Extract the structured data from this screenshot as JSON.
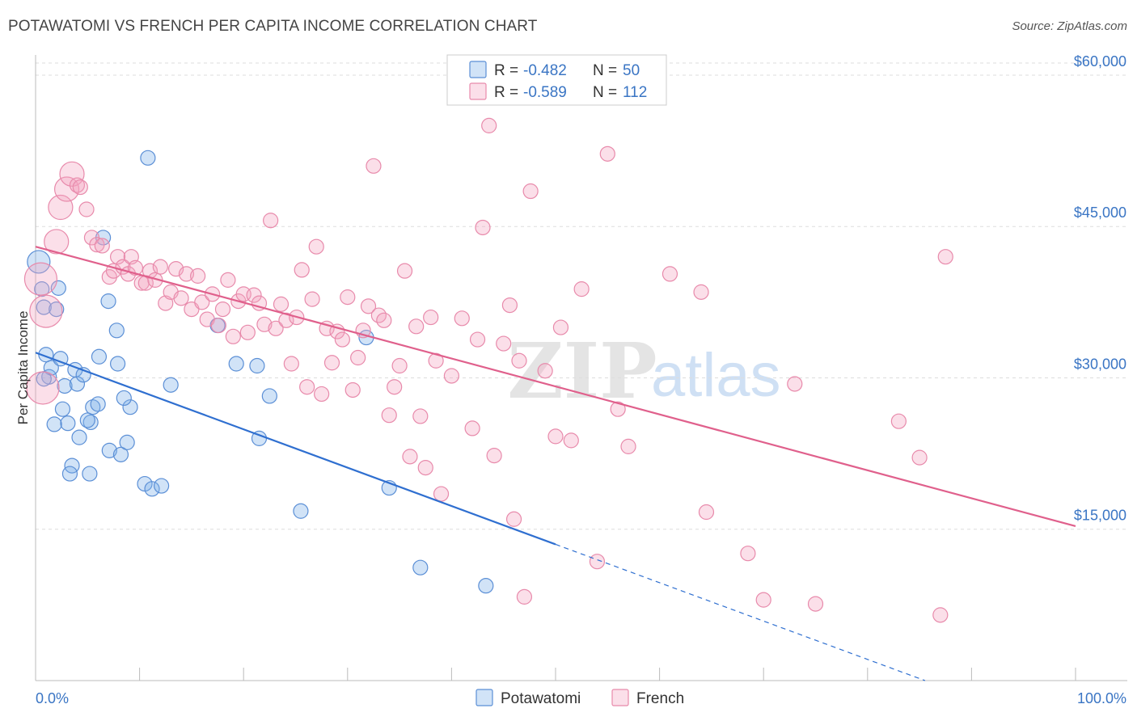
{
  "header": {
    "title": "POTAWATOMI VS FRENCH PER CAPITA INCOME CORRELATION CHART",
    "source": "Source: ZipAtlas.com"
  },
  "chart_data": {
    "type": "scatter",
    "title": "POTAWATOMI VS FRENCH PER CAPITA INCOME CORRELATION CHART",
    "xlabel": "",
    "ylabel": "Per Capita Income",
    "xlim": [
      0,
      100
    ],
    "ylim": [
      0,
      62000
    ],
    "x_tick_labels": [
      "0.0%",
      "100.0%"
    ],
    "y_ticks": [
      15000,
      30000,
      45000,
      60000
    ],
    "y_tick_labels": [
      "$15,000",
      "$30,000",
      "$45,000",
      "$60,000"
    ],
    "grid": true,
    "legend_position": "top-center",
    "watermark": "ZIPatlas",
    "series": [
      {
        "name": "Potawatomi",
        "color": "#7baee8",
        "r_label": "R =",
        "r_value": "-0.482",
        "n_label": "N =",
        "n_value": "50",
        "trend": {
          "x0": 0,
          "y0": 32500,
          "x1": 50,
          "y1": 13500,
          "dash_to_x": 100,
          "dash_to_y": -6500
        },
        "points": [
          [
            0.3,
            41500
          ],
          [
            0.6,
            38800
          ],
          [
            0.8,
            37000
          ],
          [
            2.0,
            36800
          ],
          [
            2.2,
            38900
          ],
          [
            1.0,
            32300
          ],
          [
            1.3,
            30100
          ],
          [
            1.5,
            31000
          ],
          [
            2.4,
            31900
          ],
          [
            2.8,
            29200
          ],
          [
            3.1,
            25500
          ],
          [
            2.6,
            26900
          ],
          [
            3.8,
            30800
          ],
          [
            4.0,
            29400
          ],
          [
            4.2,
            24100
          ],
          [
            4.6,
            30300
          ],
          [
            5.3,
            25600
          ],
          [
            5.0,
            25800
          ],
          [
            5.5,
            27100
          ],
          [
            6.0,
            27400
          ],
          [
            3.5,
            21300
          ],
          [
            3.3,
            20500
          ],
          [
            5.2,
            20500
          ],
          [
            7.1,
            22800
          ],
          [
            8.2,
            22400
          ],
          [
            8.8,
            23600
          ],
          [
            9.1,
            27100
          ],
          [
            8.5,
            28000
          ],
          [
            7.0,
            37600
          ],
          [
            7.8,
            34700
          ],
          [
            7.9,
            31400
          ],
          [
            6.1,
            32100
          ],
          [
            6.5,
            43900
          ],
          [
            10.5,
            19500
          ],
          [
            11.2,
            19000
          ],
          [
            12.1,
            19300
          ],
          [
            13.0,
            29300
          ],
          [
            10.8,
            51800
          ],
          [
            17.5,
            35200
          ],
          [
            19.3,
            31400
          ],
          [
            21.3,
            31200
          ],
          [
            21.5,
            24000
          ],
          [
            22.5,
            28200
          ],
          [
            25.5,
            16800
          ],
          [
            31.8,
            34000
          ],
          [
            34.0,
            19100
          ],
          [
            37.0,
            11200
          ],
          [
            43.3,
            9400
          ],
          [
            0.8,
            29900
          ],
          [
            1.8,
            25400
          ]
        ]
      },
      {
        "name": "French",
        "color": "#f4a3c0",
        "r_label": "R =",
        "r_value": "-0.589",
        "n_label": "N =",
        "n_value": "112",
        "trend": {
          "x0": 0,
          "y0": 43000,
          "x1": 100,
          "y1": 15300
        },
        "points": [
          [
            0.5,
            39800
          ],
          [
            1.0,
            36600
          ],
          [
            0.7,
            29000
          ],
          [
            2.0,
            43500
          ],
          [
            2.4,
            46900
          ],
          [
            3.0,
            48700
          ],
          [
            3.5,
            50200
          ],
          [
            4.0,
            49100
          ],
          [
            4.3,
            48900
          ],
          [
            4.9,
            46700
          ],
          [
            5.4,
            43900
          ],
          [
            5.9,
            43200
          ],
          [
            6.4,
            43100
          ],
          [
            7.1,
            40000
          ],
          [
            7.5,
            40600
          ],
          [
            7.9,
            42000
          ],
          [
            8.4,
            41000
          ],
          [
            8.9,
            40300
          ],
          [
            9.2,
            42000
          ],
          [
            9.6,
            40900
          ],
          [
            10.2,
            39400
          ],
          [
            10.6,
            39400
          ],
          [
            11.0,
            40600
          ],
          [
            11.5,
            39700
          ],
          [
            12.0,
            41000
          ],
          [
            12.5,
            37400
          ],
          [
            13.0,
            38500
          ],
          [
            13.5,
            40800
          ],
          [
            14.0,
            37900
          ],
          [
            14.5,
            40300
          ],
          [
            15.0,
            36800
          ],
          [
            15.6,
            40100
          ],
          [
            16.0,
            37500
          ],
          [
            16.5,
            35800
          ],
          [
            17.0,
            38300
          ],
          [
            17.6,
            35200
          ],
          [
            18.0,
            36800
          ],
          [
            18.5,
            39700
          ],
          [
            19.0,
            34100
          ],
          [
            19.5,
            37600
          ],
          [
            20.0,
            38300
          ],
          [
            20.4,
            34500
          ],
          [
            21.0,
            38200
          ],
          [
            21.5,
            37400
          ],
          [
            22.0,
            35300
          ],
          [
            22.6,
            45600
          ],
          [
            23.1,
            34900
          ],
          [
            23.6,
            37300
          ],
          [
            24.1,
            35700
          ],
          [
            24.6,
            31400
          ],
          [
            25.1,
            36000
          ],
          [
            25.6,
            40700
          ],
          [
            26.1,
            29100
          ],
          [
            26.6,
            37800
          ],
          [
            27.0,
            43000
          ],
          [
            27.5,
            28400
          ],
          [
            28.0,
            34900
          ],
          [
            28.5,
            31500
          ],
          [
            29.0,
            34600
          ],
          [
            29.5,
            33800
          ],
          [
            30.0,
            38000
          ],
          [
            30.5,
            28800
          ],
          [
            31.0,
            32000
          ],
          [
            31.5,
            34700
          ],
          [
            32.0,
            37100
          ],
          [
            32.5,
            51000
          ],
          [
            33.0,
            36200
          ],
          [
            33.5,
            35700
          ],
          [
            34.0,
            26300
          ],
          [
            34.5,
            29100
          ],
          [
            35.0,
            31200
          ],
          [
            35.5,
            40600
          ],
          [
            36.0,
            22200
          ],
          [
            36.6,
            35100
          ],
          [
            37.0,
            26200
          ],
          [
            37.5,
            21100
          ],
          [
            38.0,
            36000
          ],
          [
            38.5,
            31700
          ],
          [
            39.0,
            18500
          ],
          [
            40.0,
            30200
          ],
          [
            41.0,
            35900
          ],
          [
            42.0,
            25000
          ],
          [
            42.5,
            33800
          ],
          [
            43.0,
            44900
          ],
          [
            43.6,
            55000
          ],
          [
            44.1,
            22300
          ],
          [
            45.0,
            33400
          ],
          [
            45.6,
            37200
          ],
          [
            46.0,
            16000
          ],
          [
            46.5,
            31700
          ],
          [
            47.0,
            8300
          ],
          [
            47.6,
            48500
          ],
          [
            49.0,
            30700
          ],
          [
            50.0,
            24200
          ],
          [
            50.5,
            35000
          ],
          [
            51.5,
            23800
          ],
          [
            52.5,
            38800
          ],
          [
            54.0,
            11800
          ],
          [
            55.0,
            52200
          ],
          [
            56.0,
            26900
          ],
          [
            57.0,
            23200
          ],
          [
            61.0,
            40300
          ],
          [
            64.0,
            38500
          ],
          [
            64.5,
            16700
          ],
          [
            68.5,
            12600
          ],
          [
            70.0,
            8000
          ],
          [
            73.0,
            29400
          ],
          [
            75.0,
            7600
          ],
          [
            83.0,
            25700
          ],
          [
            85.0,
            22100
          ],
          [
            87.0,
            6500
          ],
          [
            87.5,
            42000
          ]
        ]
      }
    ]
  },
  "legend_bottom": [
    "Potawatomi",
    "French"
  ]
}
